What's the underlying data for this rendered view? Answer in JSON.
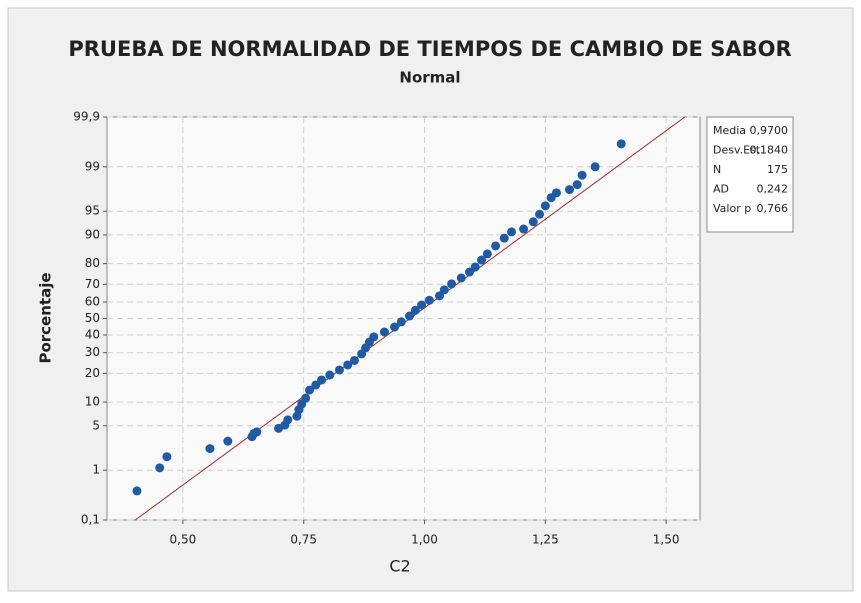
{
  "chart_data": {
    "type": "scatter",
    "title": "PRUEBA DE NORMALIDAD DE TIEMPOS DE CAMBIO DE SABOR",
    "subtitle": "Normal",
    "x_label": "C2",
    "y_label": "Porcentaje",
    "yscale": "normal-probability",
    "grid": true,
    "legend": "right",
    "fit_color": "#a52a2a",
    "x": [
      0.405,
      0.452,
      0.467,
      0.556,
      0.593,
      0.643,
      0.647,
      0.653,
      0.698,
      0.711,
      0.717,
      0.736,
      0.74,
      0.746,
      0.754,
      0.762,
      0.775,
      0.787,
      0.804,
      0.824,
      0.841,
      0.855,
      0.87,
      0.878,
      0.886,
      0.895,
      0.917,
      0.938,
      0.952,
      0.969,
      0.981,
      0.994,
      1.01,
      1.031,
      1.041,
      1.056,
      1.076,
      1.093,
      1.105,
      1.118,
      1.13,
      1.147,
      1.165,
      1.18,
      1.205,
      1.225,
      1.238,
      1.25,
      1.262,
      1.273,
      1.3,
      1.316,
      1.326,
      1.353,
      1.407
    ],
    "series": [
      {
        "color": "#1f5aa6",
        "values": [
          0.41,
          1.1,
          1.7,
          2.3,
          3.0,
          3.5,
          3.9,
          4.1,
          4.6,
          5.1,
          6.0,
          6.7,
          8.1,
          9.5,
          11.1,
          13.6,
          15.4,
          17.3,
          19.3,
          21.5,
          23.8,
          26,
          29.4,
          32.6,
          35.9,
          38.9,
          41.8,
          44.8,
          48,
          51.5,
          55,
          58.2,
          61,
          63.6,
          67,
          70.2,
          73.3,
          76.2,
          78.5,
          81.5,
          83.9,
          86.7,
          89.1,
          90.8,
          91.5,
          93.1,
          94.5,
          95.8,
          96.8,
          97.3,
          97.6,
          98.0,
          98.6,
          99.0,
          99.63
        ]
      }
    ],
    "xlim": [
      0.343,
      1.57
    ],
    "xticks": [
      {
        "value": 0.5,
        "label": "0,50"
      },
      {
        "value": 0.75,
        "label": "0,75"
      },
      {
        "value": 1.0,
        "label": "1,00"
      },
      {
        "value": 1.25,
        "label": "1,25"
      },
      {
        "value": 1.5,
        "label": "1,50"
      }
    ],
    "ylim": [
      0.1,
      99.9
    ],
    "yticks": [
      {
        "value": 0.1,
        "label": "0,1"
      },
      1,
      5,
      10,
      20,
      30,
      40,
      50,
      60,
      70,
      80,
      90,
      95,
      99,
      {
        "value": 99.9,
        "label": "99,9"
      }
    ],
    "stats": [
      {
        "name": "Media",
        "value": 0.97,
        "label": "0,9700"
      },
      {
        "name": "Desv.Est.",
        "value": 0.184,
        "label": "0,1840"
      },
      {
        "name": "N",
        "value": 175
      },
      {
        "name": "AD",
        "value": 0.242,
        "label": "0,242"
      },
      {
        "name": "Valor p",
        "value": 0.766,
        "label": "0,766"
      }
    ]
  }
}
